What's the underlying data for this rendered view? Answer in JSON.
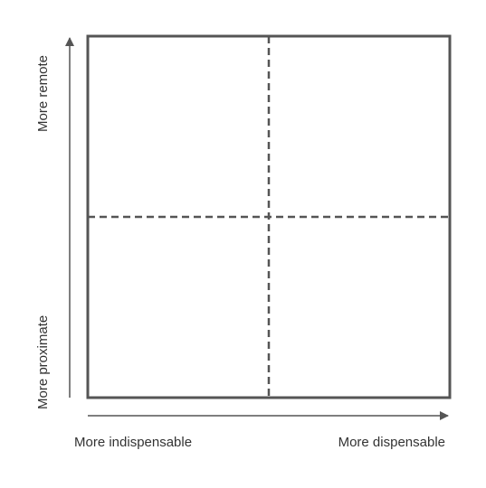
{
  "y_axis": {
    "top_label": "More remote",
    "bottom_label": "More proximate"
  },
  "x_axis": {
    "left_label": "More indispensable",
    "right_label": "More dispensable"
  }
}
